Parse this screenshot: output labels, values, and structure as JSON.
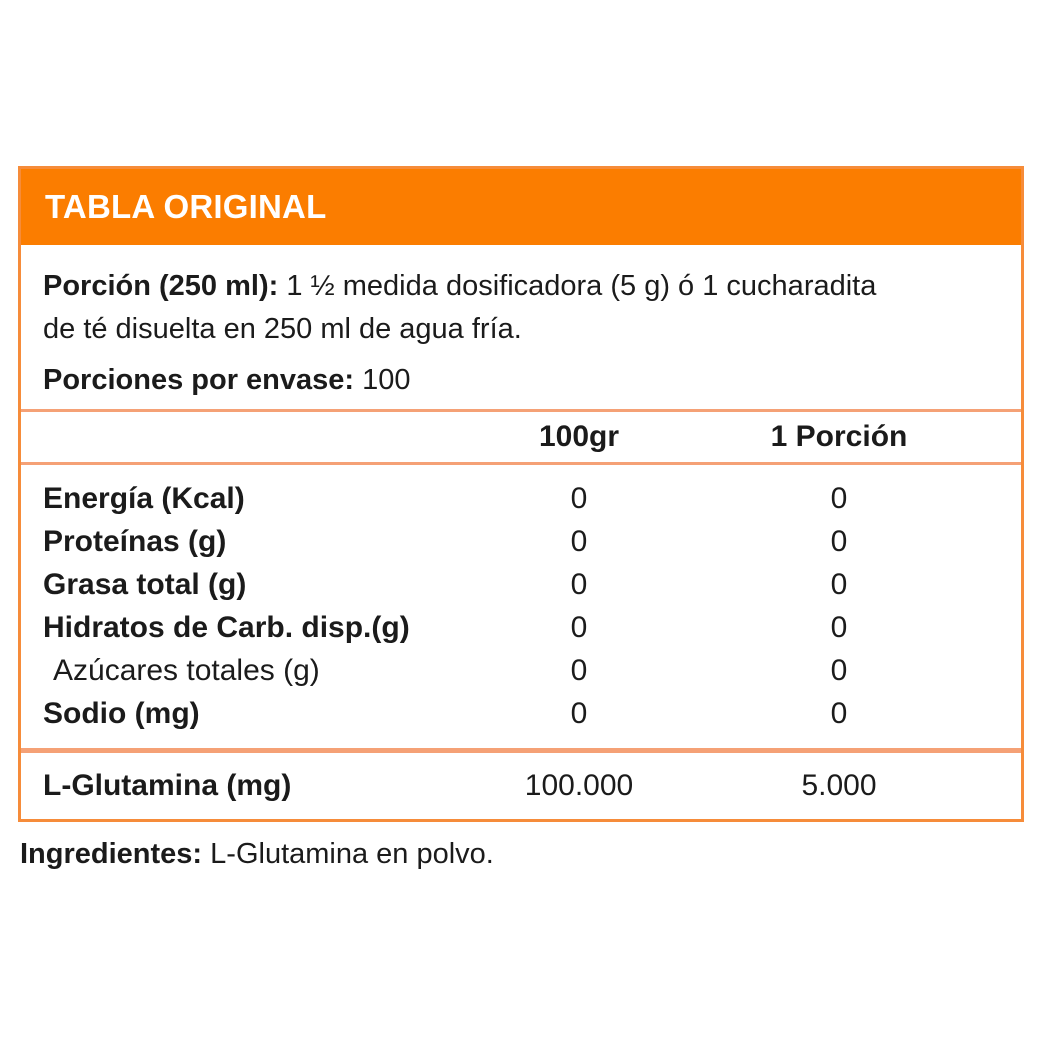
{
  "title": "TABLA ORIGINAL",
  "serving": {
    "label": "Porción (250 ml):",
    "text_line1": "1 ½ medida dosificadora (5 g) ó 1 cucharadita",
    "text_line2": "de té disuelta en 250 ml de agua fría."
  },
  "servings_per_container": {
    "label": "Porciones por envase:",
    "value": "100"
  },
  "columns": {
    "per_100g": "100gr",
    "per_serving": "1 Porción"
  },
  "rows": [
    {
      "label": "Energía (Kcal)",
      "per_100g": "0",
      "per_serving": "0"
    },
    {
      "label": "Proteínas (g)",
      "per_100g": "0",
      "per_serving": "0"
    },
    {
      "label": "Grasa total (g)",
      "per_100g": "0",
      "per_serving": "0"
    },
    {
      "label": "Hidratos de Carb. disp.(g)",
      "per_100g": "0",
      "per_serving": "0"
    },
    {
      "label": "Azúcares totales (g)",
      "per_100g": "0",
      "per_serving": "0"
    },
    {
      "label": "Sodio (mg)",
      "per_100g": "0",
      "per_serving": "0"
    }
  ],
  "highlight_row": {
    "label": "L-Glutamina (mg)",
    "per_100g": "100.000",
    "per_serving": "5.000"
  },
  "ingredients": {
    "label": "Ingredientes:",
    "value": "L-Glutamina en polvo."
  },
  "colors": {
    "header_bg": "#FB7D00",
    "outer_border": "#F68C3A",
    "divider": "#F5A176",
    "title_text": "#FFFFFF",
    "body_text": "#1B1B1B",
    "background": "#FFFFFF"
  }
}
